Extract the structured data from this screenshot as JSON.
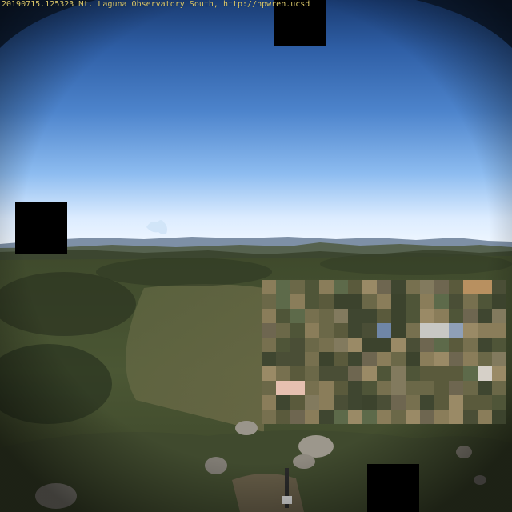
{
  "camera_overlay": {
    "caption": "20190715.125323 Mt. Laguna Observatory South, http://hpwren.ucsd"
  },
  "colors": {
    "sky_top": "#1d427e",
    "sky_mid": "#4c84cc",
    "sky_horizon": "#eaf4ff",
    "mountain_haze": "#7a8ea8",
    "forest_dark": "#2f3a23",
    "forest_mid": "#4f5a34",
    "hill_light": "#6f6b4b",
    "rock": "#8f8a80",
    "overlay_text": "#d9c66a",
    "redaction": "#000000"
  }
}
